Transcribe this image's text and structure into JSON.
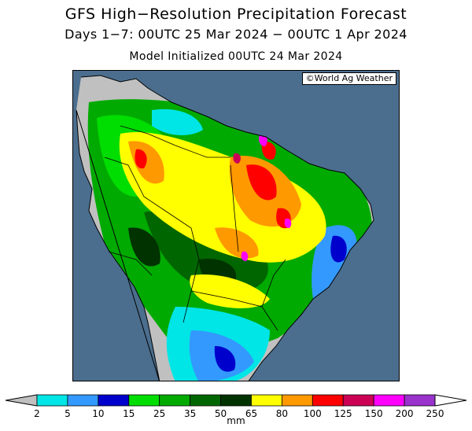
{
  "title": {
    "line1": "GFS High−Resolution Precipitation Forecast",
    "line2": "Days 1−7: 00UTC 25 Mar 2024 − 00UTC 1 Apr 2024",
    "line3": "Model Initialized 00UTC 24 Mar 2024"
  },
  "credit": "©World Ag Weather",
  "legend": {
    "unit": "mm",
    "ticks": [
      "2",
      "5",
      "10",
      "15",
      "25",
      "35",
      "50",
      "65",
      "80",
      "100",
      "125",
      "150",
      "200",
      "250"
    ],
    "colors": [
      "#00e5e5",
      "#3399ff",
      "#0000cc",
      "#00dd00",
      "#00aa00",
      "#006600",
      "#003300",
      "#ffff00",
      "#ff9900",
      "#ff0000",
      "#cc0055",
      "#ff00ff",
      "#9933cc"
    ],
    "below_color": "#c0c0c0",
    "above_color": "#ffffff"
  },
  "map_colors": {
    "ocean": "#4b6e8e",
    "dry_land": "#c0c0c0",
    "borders": "#000000"
  }
}
